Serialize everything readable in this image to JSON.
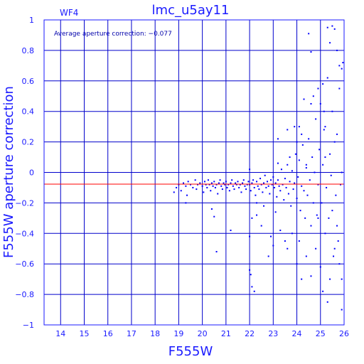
{
  "chart_data": {
    "type": "scatter",
    "title": "lmc_u5ay11",
    "chip_label": "WF4",
    "annotation": "Average aperture correction: −0.077",
    "xlabel": "F555W",
    "ylabel": "F555W aperture correction",
    "xlim": [
      13.3,
      26
    ],
    "ylim": [
      -1,
      1
    ],
    "xticks": [
      "14",
      "15",
      "16",
      "17",
      "18",
      "19",
      "20",
      "21",
      "22",
      "23",
      "24",
      "25",
      "26"
    ],
    "yticks": [
      "1",
      "0.8",
      "0.6",
      "0.4",
      "0.2",
      "0",
      "−0.2",
      "−0.4",
      "−0.6",
      "−0.8",
      "−1"
    ],
    "grid": true,
    "reference_line": -0.077,
    "colors": {
      "axes": "#1a1aff",
      "grid": "#0000cc",
      "points": "#0000ff",
      "reference": "#ff0000"
    },
    "points": [
      [
        18.8,
        -0.13
      ],
      [
        18.9,
        -0.1
      ],
      [
        19.0,
        -0.08
      ],
      [
        19.1,
        -0.12
      ],
      [
        19.2,
        -0.07
      ],
      [
        19.3,
        -0.09
      ],
      [
        19.35,
        -0.15
      ],
      [
        19.4,
        -0.06
      ],
      [
        19.5,
        -0.08
      ],
      [
        19.6,
        -0.1
      ],
      [
        19.7,
        -0.05
      ],
      [
        19.75,
        -0.11
      ],
      [
        19.8,
        -0.08
      ],
      [
        19.9,
        -0.07
      ],
      [
        20.0,
        -0.09
      ],
      [
        20.05,
        -0.13
      ],
      [
        20.1,
        -0.06
      ],
      [
        20.15,
        -0.08
      ],
      [
        20.2,
        -0.1
      ],
      [
        20.25,
        -0.05
      ],
      [
        20.3,
        -0.08
      ],
      [
        20.35,
        -0.12
      ],
      [
        20.4,
        -0.07
      ],
      [
        20.45,
        -0.09
      ],
      [
        20.5,
        -0.06
      ],
      [
        20.55,
        -0.1
      ],
      [
        20.6,
        -0.08
      ],
      [
        20.65,
        -0.14
      ],
      [
        20.7,
        -0.07
      ],
      [
        20.75,
        -0.05
      ],
      [
        20.8,
        -0.09
      ],
      [
        20.85,
        -0.11
      ],
      [
        20.9,
        -0.07
      ],
      [
        20.95,
        -0.08
      ],
      [
        21.0,
        -0.06
      ],
      [
        21.05,
        -0.1
      ],
      [
        21.1,
        -0.08
      ],
      [
        21.15,
        -0.12
      ],
      [
        21.2,
        -0.07
      ],
      [
        21.25,
        -0.05
      ],
      [
        21.3,
        -0.09
      ],
      [
        21.35,
        -0.11
      ],
      [
        21.4,
        -0.07
      ],
      [
        21.45,
        -0.08
      ],
      [
        21.5,
        -0.06
      ],
      [
        21.55,
        -0.1
      ],
      [
        21.6,
        -0.08
      ],
      [
        21.65,
        -0.13
      ],
      [
        21.7,
        -0.07
      ],
      [
        21.75,
        -0.05
      ],
      [
        21.8,
        -0.09
      ],
      [
        21.85,
        -0.11
      ],
      [
        21.9,
        -0.08
      ],
      [
        21.95,
        -0.06
      ],
      [
        22.0,
        -0.08
      ],
      [
        22.05,
        -0.12
      ],
      [
        22.1,
        -0.07
      ],
      [
        22.15,
        -0.05
      ],
      [
        22.2,
        -0.1
      ],
      [
        22.25,
        -0.15
      ],
      [
        22.3,
        -0.06
      ],
      [
        22.35,
        -0.09
      ],
      [
        22.4,
        -0.11
      ],
      [
        22.45,
        -0.04
      ],
      [
        22.5,
        -0.08
      ],
      [
        22.55,
        -0.13
      ],
      [
        22.6,
        -0.07
      ],
      [
        22.65,
        -0.02
      ],
      [
        22.7,
        -0.1
      ],
      [
        22.75,
        -0.06
      ],
      [
        22.8,
        -0.09
      ],
      [
        22.85,
        -0.14
      ],
      [
        22.9,
        -0.05
      ],
      [
        22.95,
        -0.08
      ],
      [
        23.0,
        -0.03
      ],
      [
        23.05,
        -0.1
      ],
      [
        23.1,
        -0.07
      ],
      [
        23.15,
        -0.16
      ],
      [
        23.2,
        -0.05
      ],
      [
        23.25,
        -0.09
      ],
      [
        23.3,
        -0.12
      ],
      [
        23.35,
        0.02
      ],
      [
        23.4,
        -0.08
      ],
      [
        23.45,
        -0.18
      ],
      [
        23.5,
        -0.04
      ],
      [
        23.55,
        -0.1
      ],
      [
        23.6,
        0.05
      ],
      [
        23.65,
        -0.14
      ],
      [
        23.7,
        -0.06
      ],
      [
        23.75,
        -0.22
      ],
      [
        23.8,
        0.01
      ],
      [
        23.85,
        -0.11
      ],
      [
        23.9,
        -0.07
      ],
      [
        23.95,
        0.12
      ],
      [
        24.0,
        -0.17
      ],
      [
        24.05,
        -0.03
      ],
      [
        24.1,
        0.08
      ],
      [
        24.15,
        -0.25
      ],
      [
        24.2,
        -0.09
      ],
      [
        24.25,
        0.18
      ],
      [
        24.3,
        -0.12
      ],
      [
        24.35,
        -0.3
      ],
      [
        24.4,
        0.03
      ],
      [
        24.45,
        -0.15
      ],
      [
        24.5,
        0.22
      ],
      [
        24.55,
        -0.05
      ],
      [
        24.6,
        -0.35
      ],
      [
        24.65,
        0.1
      ],
      [
        24.7,
        -0.2
      ],
      [
        24.75,
        0.0
      ],
      [
        24.8,
        0.35
      ],
      [
        24.85,
        -0.28
      ],
      [
        24.9,
        -0.08
      ],
      [
        24.95,
        0.15
      ],
      [
        25.0,
        0.45
      ],
      [
        25.05,
        -0.2
      ],
      [
        25.1,
        0.05
      ],
      [
        25.15,
        0.28
      ],
      [
        25.2,
        -0.4
      ],
      [
        25.25,
        -0.1
      ],
      [
        25.3,
        0.62
      ],
      [
        25.35,
        -0.3
      ],
      [
        25.4,
        0.12
      ],
      [
        25.45,
        -0.02
      ],
      [
        25.5,
        0.4
      ],
      [
        25.55,
        -0.55
      ],
      [
        25.6,
        0.2
      ],
      [
        25.65,
        -0.15
      ],
      [
        25.7,
        0.8
      ],
      [
        25.75,
        -0.45
      ],
      [
        25.8,
        0.55
      ],
      [
        25.85,
        -0.08
      ],
      [
        25.9,
        -0.7
      ],
      [
        25.95,
        0.72
      ],
      [
        25.3,
        0.95
      ],
      [
        25.5,
        0.96
      ],
      [
        25.6,
        0.94
      ],
      [
        24.5,
        0.91
      ],
      [
        24.6,
        0.79
      ],
      [
        25.4,
        0.85
      ],
      [
        25.8,
        0.7
      ],
      [
        25.9,
        0.68
      ],
      [
        22.0,
        -0.64
      ],
      [
        22.05,
        -0.67
      ],
      [
        22.1,
        -0.75
      ],
      [
        22.2,
        -0.78
      ],
      [
        22.0,
        -0.42
      ],
      [
        22.1,
        -0.3
      ],
      [
        22.3,
        -0.2
      ],
      [
        21.2,
        -0.38
      ],
      [
        20.6,
        -0.52
      ],
      [
        20.4,
        -0.24
      ],
      [
        20.5,
        -0.29
      ],
      [
        19.3,
        -0.2
      ],
      [
        22.0,
        0.02
      ],
      [
        22.3,
        -0.28
      ],
      [
        22.5,
        -0.35
      ],
      [
        22.6,
        -0.22
      ],
      [
        22.8,
        -0.55
      ],
      [
        22.9,
        -0.42
      ],
      [
        23.0,
        -0.48
      ],
      [
        23.1,
        -0.26
      ],
      [
        23.2,
        0.22
      ],
      [
        23.3,
        -0.38
      ],
      [
        23.5,
        -0.45
      ],
      [
        23.6,
        -0.5
      ],
      [
        23.8,
        -0.4
      ],
      [
        23.9,
        0.3
      ],
      [
        24.0,
        -0.6
      ],
      [
        24.1,
        -0.45
      ],
      [
        24.2,
        0.25
      ],
      [
        24.3,
        0.48
      ],
      [
        24.4,
        -0.55
      ],
      [
        24.6,
        -0.68
      ],
      [
        24.7,
        0.5
      ],
      [
        24.8,
        -0.5
      ],
      [
        24.9,
        0.55
      ],
      [
        25.0,
        -0.62
      ],
      [
        25.1,
        -0.78
      ],
      [
        25.2,
        0.3
      ],
      [
        25.3,
        -0.85
      ],
      [
        25.4,
        -0.7
      ],
      [
        25.6,
        -0.5
      ],
      [
        25.7,
        0.25
      ],
      [
        25.8,
        -0.6
      ],
      [
        25.9,
        -0.9
      ],
      [
        25.1,
        0.58
      ],
      [
        25.15,
        0.4
      ],
      [
        23.6,
        0.28
      ],
      [
        23.7,
        0.1
      ],
      [
        24.1,
        0.3
      ],
      [
        24.2,
        -0.7
      ],
      [
        23.2,
        0.06
      ],
      [
        24.0,
        0.2
      ],
      [
        24.4,
        0.05
      ],
      [
        24.6,
        0.45
      ],
      [
        24.9,
        -0.3
      ],
      [
        25.2,
        0.1
      ],
      [
        25.5,
        -0.25
      ],
      [
        25.7,
        -0.35
      ],
      [
        25.9,
        0.0
      ]
    ]
  }
}
